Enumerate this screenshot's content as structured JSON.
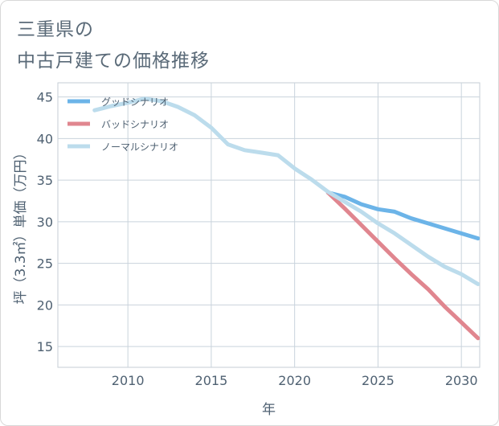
{
  "header": {
    "title_line1": "三重県の",
    "title_line2": "中古戸建ての価格推移"
  },
  "chart_data": {
    "type": "line",
    "xlabel": "年",
    "ylabel": "坪（3.3㎡）単価（万円）",
    "xlim": [
      2005.8,
      2031.1
    ],
    "ylim": [
      12.5,
      46.7
    ],
    "x_ticks": [
      2010,
      2015,
      2020,
      2025,
      2030
    ],
    "y_ticks": [
      15,
      20,
      25,
      30,
      35,
      40,
      45
    ],
    "grid": true,
    "legend_position": "top-left",
    "series": [
      {
        "name": "グッドシナリオ",
        "color": "#6cb4e8",
        "x": [
          2022,
          2023,
          2024,
          2025,
          2026,
          2027,
          2028,
          2029,
          2030,
          2031
        ],
        "y": [
          33.5,
          33.0,
          32.1,
          31.5,
          31.2,
          30.4,
          29.8,
          29.2,
          28.6,
          28.0
        ]
      },
      {
        "name": "バッドシナリオ",
        "color": "#e0868f",
        "x": [
          2022,
          2023,
          2024,
          2025,
          2026,
          2027,
          2028,
          2029,
          2030,
          2031
        ],
        "y": [
          33.5,
          31.6,
          29.6,
          27.6,
          25.6,
          23.7,
          21.9,
          19.8,
          17.9,
          16.0
        ]
      },
      {
        "name": "ノーマルシナリオ",
        "color": "#bcdcec",
        "x": [
          2008,
          2009,
          2010,
          2011,
          2012,
          2013,
          2014,
          2015,
          2016,
          2017,
          2018,
          2019,
          2020,
          2021,
          2022,
          2023,
          2024,
          2025,
          2026,
          2027,
          2028,
          2029,
          2030,
          2031
        ],
        "y": [
          43.4,
          43.9,
          44.3,
          44.8,
          44.5,
          43.8,
          42.8,
          41.3,
          39.3,
          38.6,
          38.3,
          38.0,
          36.4,
          35.1,
          33.6,
          32.4,
          31.2,
          29.8,
          28.6,
          27.2,
          25.8,
          24.6,
          23.7,
          22.5
        ]
      }
    ]
  }
}
